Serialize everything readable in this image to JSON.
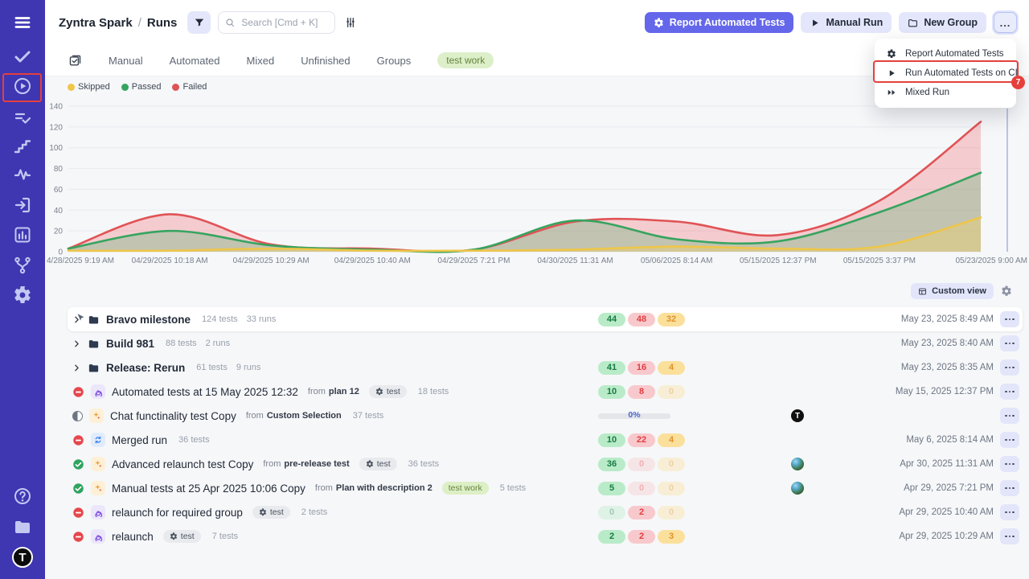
{
  "colors": {
    "sidebar": "#3f36b2",
    "accent": "#6467ea",
    "annotation": "#e5403c",
    "passed": "#36a45f",
    "failed": "#e05356",
    "skipped": "#eec64a"
  },
  "sidebar": {
    "items": [
      {
        "name": "menu"
      },
      {
        "name": "tasks"
      },
      {
        "name": "runs",
        "annotated": true
      },
      {
        "name": "test-cases"
      },
      {
        "name": "steps"
      },
      {
        "name": "pulse"
      },
      {
        "name": "import"
      },
      {
        "name": "analytics"
      },
      {
        "name": "branches"
      },
      {
        "name": "settings"
      }
    ],
    "bottom_items": [
      {
        "name": "help"
      },
      {
        "name": "projects"
      }
    ],
    "logo_letter": "T"
  },
  "header": {
    "breadcrumb": {
      "project": "Zyntra Spark",
      "separator": "/",
      "page": "Runs"
    },
    "search": {
      "placeholder": "Search [Cmd + K]"
    },
    "buttons": {
      "report_automated": "Report Automated Tests",
      "manual_run": "Manual Run",
      "new_group": "New Group",
      "more": "..."
    }
  },
  "tabs": {
    "items": [
      "Manual",
      "Automated",
      "Mixed",
      "Unfinished",
      "Groups"
    ],
    "filter_badge": "test work"
  },
  "chart_data": {
    "type": "area",
    "title": "",
    "x": [
      "4/28/2025 9:19 AM",
      "04/29/2025 10:18 AM",
      "04/29/2025 10:29 AM",
      "04/29/2025 10:40 AM",
      "04/29/2025 7:21 PM",
      "04/30/2025 11:31 AM",
      "05/06/2025 8:14 AM",
      "05/15/2025 12:37 PM",
      "05/15/2025 3:37 PM",
      "05/23/2025 9:00 AM"
    ],
    "series": [
      {
        "name": "Skipped",
        "color": "#eec64a",
        "fill": "#f3cf63",
        "values": [
          1,
          1,
          3,
          1,
          1,
          2,
          5,
          3,
          5,
          33
        ]
      },
      {
        "name": "Passed",
        "color": "#36a45f",
        "fill": "#4fae6d",
        "values": [
          3,
          20,
          6,
          2,
          2,
          30,
          12,
          10,
          38,
          76
        ]
      },
      {
        "name": "Failed",
        "color": "#e05356",
        "fill": "#ee6a6d",
        "values": [
          3,
          36,
          7,
          3,
          2,
          29,
          29,
          16,
          49,
          125
        ]
      }
    ],
    "ylim": [
      0,
      140
    ],
    "yticks": [
      0,
      20,
      40,
      60,
      80,
      100,
      120,
      140
    ],
    "grid": true,
    "legend_position": "top-left"
  },
  "dropdown_menu": {
    "items": [
      {
        "icon": "report-automated-icon",
        "label": "Report Automated Tests"
      },
      {
        "icon": "play-icon",
        "label": "Run Automated Tests on CI",
        "annotated": true
      },
      {
        "icon": "fast-forward-icon",
        "label": "Mixed Run"
      }
    ],
    "annotation_badge": "7"
  },
  "view_bar": {
    "custom_view": "Custom view"
  },
  "runs_table": {
    "rows": [
      {
        "kind": "group",
        "name": "Bravo milestone",
        "meta": [
          "124 tests",
          "33 runs"
        ],
        "counts": [
          {
            "value": "44",
            "kind": "passed",
            "faded": false
          },
          {
            "value": "48",
            "kind": "failed",
            "faded": false
          },
          {
            "value": "32",
            "kind": "skipped",
            "faded": false
          }
        ],
        "updated": "May 23, 2025 8:49 AM",
        "highlighted": true,
        "cursor": true
      },
      {
        "kind": "group",
        "name": "Build 981",
        "meta": [
          "88 tests",
          "2 runs"
        ],
        "counts": null,
        "updated": "May 23, 2025 8:40 AM"
      },
      {
        "kind": "group",
        "name": "Release: Rerun",
        "meta": [
          "61 tests",
          "9 runs"
        ],
        "counts": [
          {
            "value": "41",
            "kind": "passed",
            "faded": false
          },
          {
            "value": "16",
            "kind": "failed",
            "faded": false
          },
          {
            "value": "4",
            "kind": "skipped",
            "faded": false
          }
        ],
        "updated": "May 23, 2025 8:35 AM"
      },
      {
        "kind": "run",
        "status": "failed",
        "type_icon": "automated-run",
        "name": "Automated tests at 15 May 2025 12:32",
        "from": {
          "label": "from",
          "value": "plan 12"
        },
        "tag": {
          "label": "test",
          "variant": "gray"
        },
        "meta": [
          "18 tests"
        ],
        "counts": [
          {
            "value": "10",
            "kind": "passed",
            "faded": false
          },
          {
            "value": "8",
            "kind": "failed",
            "faded": false
          },
          {
            "value": "0",
            "kind": "skipped",
            "faded": true
          }
        ],
        "updated": "May 15, 2025 12:37 PM"
      },
      {
        "kind": "run",
        "status": "in-progress",
        "type_icon": "sparkle",
        "name": "Chat functinality test Copy",
        "from": {
          "label": "from",
          "value": "Custom Selection"
        },
        "meta": [
          "37 tests"
        ],
        "progress": "0%",
        "avatar": "testomat-logo",
        "avatar_letter": "T",
        "updated": ""
      },
      {
        "kind": "run",
        "status": "failed",
        "type_icon": "merged",
        "name": "Merged run",
        "meta": [
          "36 tests"
        ],
        "counts": [
          {
            "value": "10",
            "kind": "passed",
            "faded": false
          },
          {
            "value": "22",
            "kind": "failed",
            "faded": false
          },
          {
            "value": "4",
            "kind": "skipped",
            "faded": false
          }
        ],
        "updated": "May 6, 2025 8:14 AM"
      },
      {
        "kind": "run",
        "status": "passed",
        "type_icon": "sparkle",
        "name": "Advanced relaunch test Copy",
        "from": {
          "label": "from",
          "value": "pre-release test"
        },
        "tag": {
          "label": "test",
          "variant": "gray"
        },
        "meta": [
          "36 tests"
        ],
        "counts": [
          {
            "value": "36",
            "kind": "passed",
            "faded": false
          },
          {
            "value": "0",
            "kind": "failed",
            "faded": true
          },
          {
            "value": "0",
            "kind": "skipped",
            "faded": true
          }
        ],
        "avatar": "user-photo",
        "updated": "Apr 30, 2025 11:31 AM"
      },
      {
        "kind": "run",
        "status": "passed",
        "type_icon": "sparkle",
        "name": "Manual tests at 25 Apr 2025 10:06 Copy",
        "from": {
          "label": "from",
          "value": "Plan with description 2"
        },
        "tag": {
          "label": "test work",
          "variant": "green"
        },
        "meta": [
          "5 tests"
        ],
        "counts": [
          {
            "value": "5",
            "kind": "passed",
            "faded": false
          },
          {
            "value": "0",
            "kind": "failed",
            "faded": true
          },
          {
            "value": "0",
            "kind": "skipped",
            "faded": true
          }
        ],
        "avatar": "user-photo",
        "updated": "Apr 29, 2025 7:21 PM"
      },
      {
        "kind": "run",
        "status": "failed",
        "type_icon": "automated-run",
        "name": "relaunch for required group",
        "tag": {
          "label": "test",
          "variant": "gray"
        },
        "meta": [
          "2 tests"
        ],
        "counts": [
          {
            "value": "0",
            "kind": "passed",
            "faded": true
          },
          {
            "value": "2",
            "kind": "failed",
            "faded": false
          },
          {
            "value": "0",
            "kind": "skipped",
            "faded": true
          }
        ],
        "updated": "Apr 29, 2025 10:40 AM"
      },
      {
        "kind": "run",
        "status": "failed",
        "type_icon": "automated-run",
        "name": "relaunch",
        "tag": {
          "label": "test",
          "variant": "gray"
        },
        "meta": [
          "7 tests"
        ],
        "counts": [
          {
            "value": "2",
            "kind": "passed",
            "faded": false
          },
          {
            "value": "2",
            "kind": "failed",
            "faded": false
          },
          {
            "value": "3",
            "kind": "skipped",
            "faded": false
          }
        ],
        "updated": "Apr 29, 2025 10:29 AM"
      }
    ]
  }
}
